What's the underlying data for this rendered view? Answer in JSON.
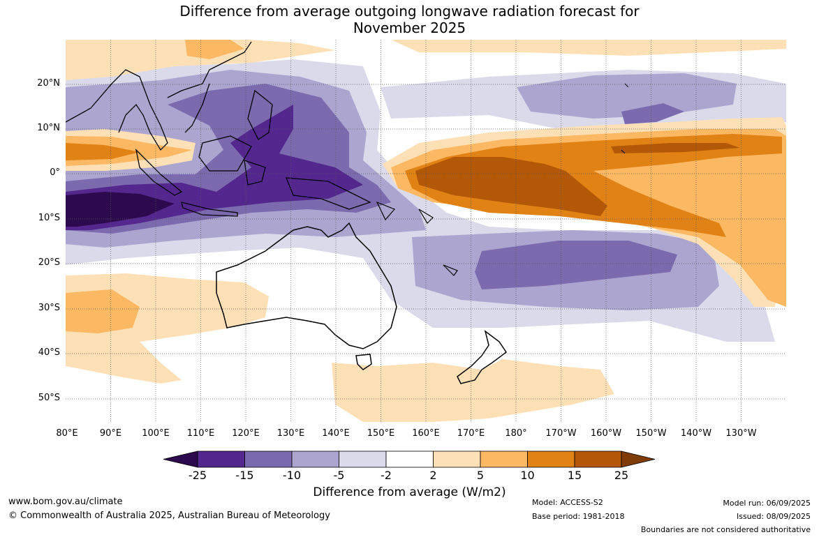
{
  "title_line1": "Difference from average outgoing longwave radiation forecast for",
  "title_line2": "November 2025",
  "lat_labels": [
    "20°N",
    "10°N",
    "0°",
    "10°S",
    "20°S",
    "30°S",
    "40°S",
    "50°S"
  ],
  "lon_labels": [
    "80°E",
    "90°E",
    "100°E",
    "110°E",
    "120°E",
    "130°E",
    "140°E",
    "150°E",
    "160°E",
    "170°E",
    "180°",
    "170°W",
    "160°W",
    "150°W",
    "140°W",
    "130°W"
  ],
  "colorbar": {
    "title": "Difference from average (W/m2)",
    "ticks": [
      "-25",
      "-15",
      "-10",
      "-5",
      "-2",
      "2",
      "5",
      "10",
      "15",
      "25"
    ],
    "colors": [
      "#2d0a4e",
      "#54278f",
      "#7b6aad",
      "#aba5d0",
      "#dadaeb",
      "#ffffff",
      "#fee0b6",
      "#fdb863",
      "#e08214",
      "#b35806",
      "#7f3b08"
    ]
  },
  "footer": {
    "website": "www.bom.gov.au/climate",
    "copyright": "© Commonwealth of Australia 2025, Australian Bureau of Meteorology",
    "model": "Model: ACCESS-S2",
    "base_period": "Base period: 1981-2018",
    "model_run": "Model run: 06/09/2025",
    "issued": "Issued: 08/09/2025",
    "disclaimer": "Boundaries are not considered authoritative"
  }
}
